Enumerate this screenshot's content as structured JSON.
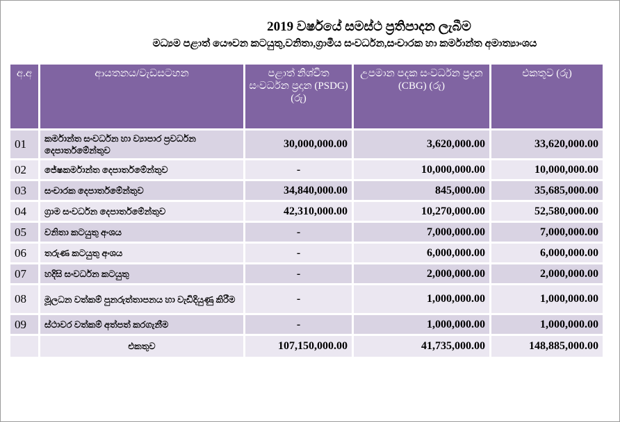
{
  "header": {
    "title": "2019 වර්ෂයේ සමස්ථ ප්‍රතිපාදන ලැබීම",
    "subtitle": "මධ්‍යම පළාත් යෞවන කටයුතු,වනිතා,ග්‍රාමීය සංවර්ධන,සංචාරක හා කර්මාන්ත අමාත්‍යාංශය"
  },
  "columns": {
    "no": "අ.අ",
    "name": "ආයතනය/වැඩසටහන",
    "psdg": "පළාත් නිශ්චිත සංවර්ධන ප්‍රදාන (PSDG) (රු)",
    "cbg": "උපමාන පදක සංවර්ධන ප්‍රදාන (CBG) (රු)",
    "total": "එකතුව (රු)"
  },
  "rows": [
    {
      "no": "01",
      "name": "කර්මාන්ත සංවර්ධන හා ව්‍යාපාර ප්‍රවර්ධන දෙපාර්තමේන්තුව",
      "psdg": "30,000,000.00",
      "cbg": "3,620,000.00",
      "total": "33,620,000.00"
    },
    {
      "no": "02",
      "name": "ජේෂකර්මාන්ත දෙපාර්තමේන්තුව",
      "psdg": "-",
      "cbg": "10,000,000.00",
      "total": "10,000,000.00"
    },
    {
      "no": "03",
      "name": "සංචාරක දෙපාර්තමේන්තුව",
      "psdg": "34,840,000.00",
      "cbg": "845,000.00",
      "total": "35,685,000.00"
    },
    {
      "no": "04",
      "name": "ග්‍රාම සංවර්ධන දෙපාර්තමේන්තුව",
      "psdg": "42,310,000.00",
      "cbg": "10,270,000.00",
      "total": "52,580,000.00"
    },
    {
      "no": "05",
      "name": "වනිතා කටයුතු අංශය",
      "psdg": "-",
      "cbg": "7,000,000.00",
      "total": "7,000,000.00"
    },
    {
      "no": "06",
      "name": "තරුණ කටයුතු අංශය",
      "psdg": "-",
      "cbg": "6,000,000.00",
      "total": "6,000,000.00"
    },
    {
      "no": "07",
      "name": "හදිසි සංවර්ධන කටයුතු",
      "psdg": "-",
      "cbg": "2,000,000.00",
      "total": "2,000,000.00"
    },
    {
      "no": "08",
      "name": "මූලධන වත්කම් පුනරුත්තාපනය හා වැඩිදියුණු කිරීම",
      "psdg": "-",
      "cbg": "1,000,000.00",
      "total": "1,000,000.00"
    },
    {
      "no": "09",
      "name": "ස්ථාවර වත්කම් අත්පත් කරගැනීම",
      "psdg": "-",
      "cbg": "1,000,000.00",
      "total": "1,000,000.00"
    }
  ],
  "totals": {
    "label": "එකතුව",
    "psdg": "107,150,000.00",
    "cbg": "41,735,000.00",
    "total": "148,885,000.00"
  }
}
